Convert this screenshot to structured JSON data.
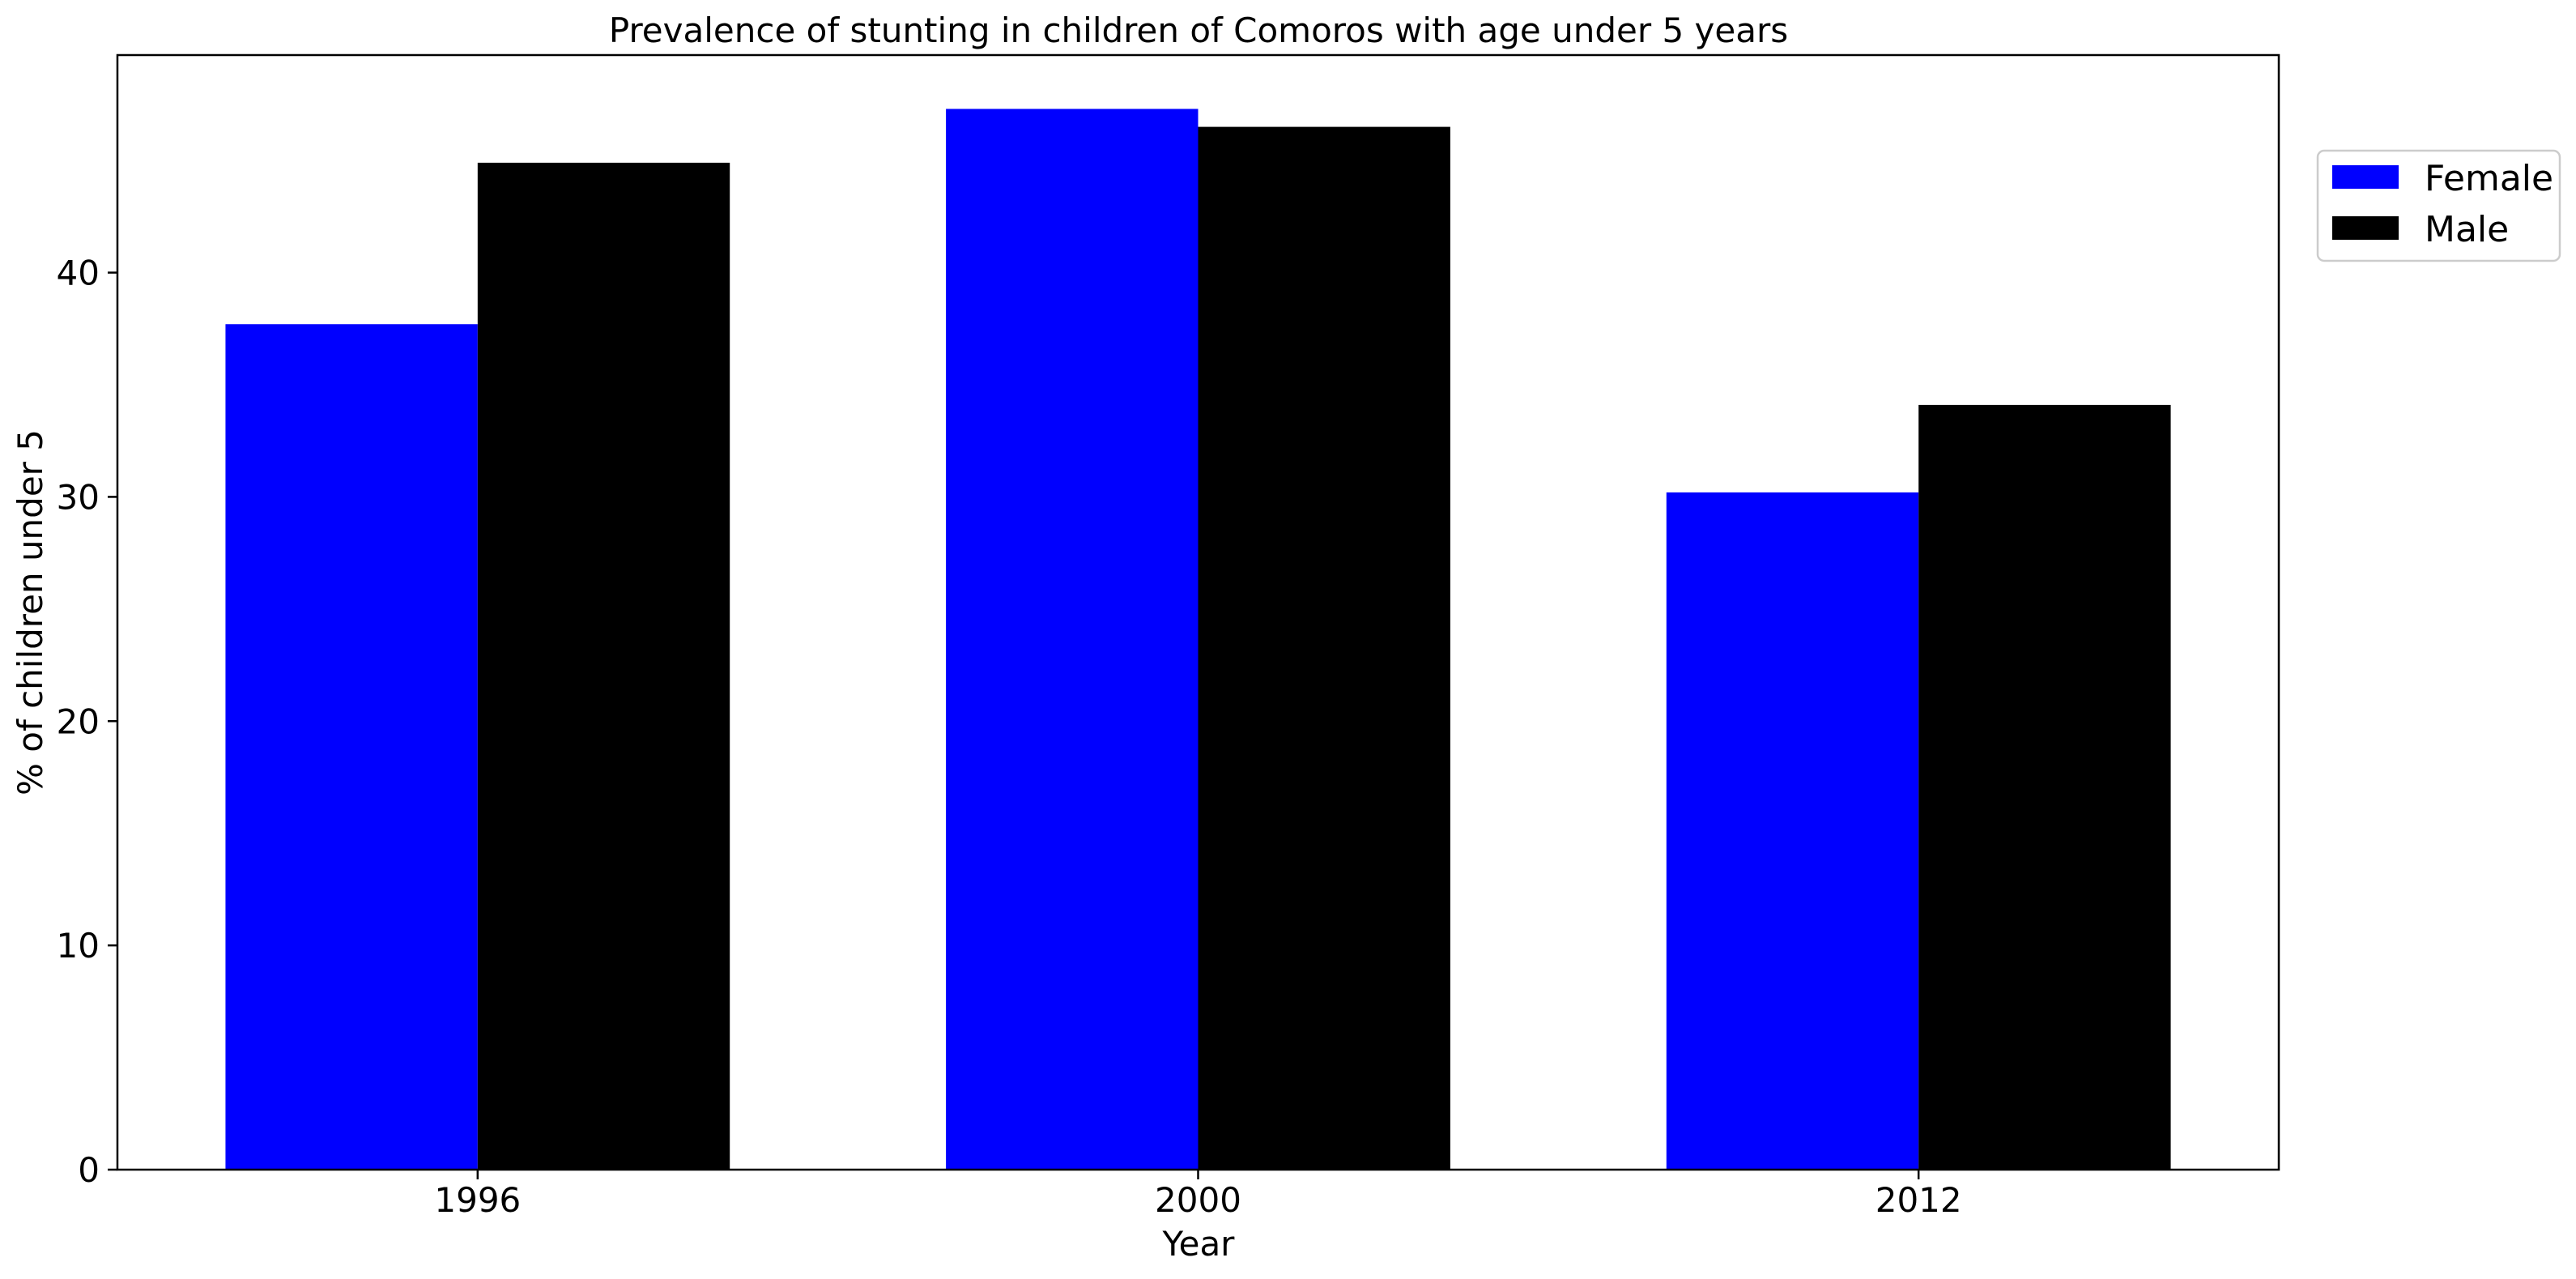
{
  "chart_data": {
    "type": "bar",
    "title": "Prevalence of stunting in children of Comoros with age under 5 years",
    "xlabel": "Year",
    "ylabel": "% of children under 5",
    "categories": [
      "1996",
      "2000",
      "2012"
    ],
    "series": [
      {
        "name": "Female",
        "color": "#0000ff",
        "values": [
          37.7,
          47.3,
          30.2
        ]
      },
      {
        "name": "Male",
        "color": "#000000",
        "values": [
          44.9,
          46.5,
          34.1
        ]
      }
    ],
    "ylim": [
      0,
      49.7
    ],
    "yticks": [
      0,
      10,
      20,
      30,
      40
    ],
    "grid": false,
    "legend_position": "upper-right-outside"
  }
}
